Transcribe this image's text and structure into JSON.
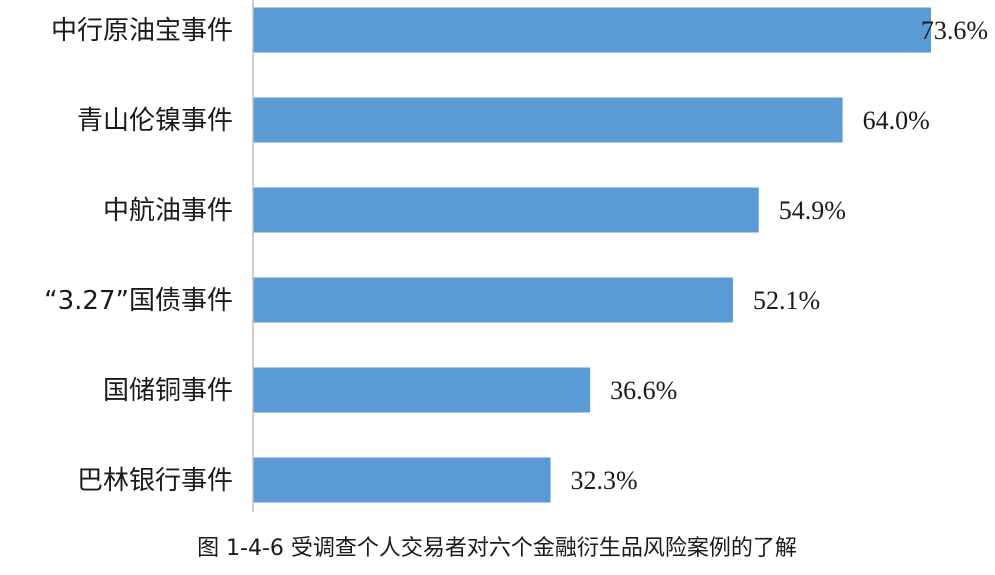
{
  "caption": "图 1-4-6 受调查个人交易者对六个金融衍生品风险案例的了解",
  "colors": {
    "bar": "#5b9bd5",
    "axis": "#bfbfbf",
    "text": "#1a1a1a"
  },
  "chart_data": {
    "type": "bar",
    "orientation": "horizontal",
    "title": "",
    "xlabel": "",
    "ylabel": "",
    "xlim": [
      0,
      80
    ],
    "grid": false,
    "legend": "none",
    "categories": [
      "中行原油宝事件",
      "青山伦镍事件",
      "中航油事件",
      "“3.27”国债事件",
      "国储铜事件",
      "巴林银行事件"
    ],
    "values": [
      73.6,
      64.0,
      54.9,
      52.1,
      36.6,
      32.3
    ],
    "value_labels": [
      "73.6%",
      "64.0%",
      "54.9%",
      "52.1%",
      "36.6%",
      "32.3%"
    ],
    "unit": "%"
  }
}
